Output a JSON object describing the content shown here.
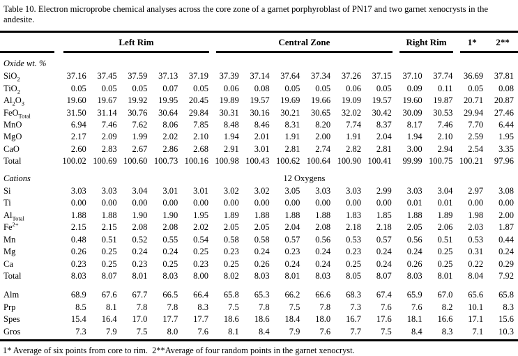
{
  "title": "Table 10. Electron microprobe chemical analyses across the core zone of a garnet porphyroblast of PN17 and two garnet xenocrysts in the andesite.",
  "footnote": "1* Average of six points from core to rim.  2**Average of four random points in the garnet xenocryst.",
  "header": {
    "groups": [
      {
        "label": "",
        "name": "row-labels",
        "span": 1
      },
      {
        "label": "Left Rim",
        "name": "left-rim",
        "span": 5
      },
      {
        "label": "Central Zone",
        "name": "central-zone",
        "span": 6
      },
      {
        "label": "Right Rim",
        "name": "right-rim",
        "span": 2
      },
      {
        "label": "1*",
        "name": "avg-1-star",
        "span": 1
      },
      {
        "label": "2**",
        "name": "avg-2-star",
        "span": 1
      }
    ],
    "rules": [
      1,
      5,
      6,
      2,
      2
    ]
  },
  "sections": [
    {
      "title": "Oxide wt. %",
      "note": "",
      "rows": [
        {
          "label": [
            {
              "t": "SiO"
            },
            {
              "t": "2",
              "s": "sub"
            }
          ],
          "values": [
            "37.16",
            "37.45",
            "37.59",
            "37.13",
            "37.19",
            "37.39",
            "37.14",
            "37.64",
            "37.34",
            "37.26",
            "37.15",
            "37.10",
            "37.74",
            "36.69",
            "37.81"
          ]
        },
        {
          "label": [
            {
              "t": "TiO"
            },
            {
              "t": "2",
              "s": "sub"
            }
          ],
          "values": [
            "0.05",
            "0.05",
            "0.05",
            "0.07",
            "0.05",
            "0.06",
            "0.08",
            "0.05",
            "0.05",
            "0.06",
            "0.05",
            "0.09",
            "0.11",
            "0.05",
            "0.08"
          ]
        },
        {
          "label": [
            {
              "t": "Al"
            },
            {
              "t": "2",
              "s": "sub"
            },
            {
              "t": "O"
            },
            {
              "t": "3",
              "s": "sub"
            }
          ],
          "values": [
            "19.60",
            "19.67",
            "19.92",
            "19.95",
            "20.45",
            "19.89",
            "19.57",
            "19.69",
            "19.66",
            "19.09",
            "19.57",
            "19.60",
            "19.87",
            "20.71",
            "20.87"
          ]
        },
        {
          "label": [
            {
              "t": "FeO"
            },
            {
              "t": "Total",
              "s": "sub"
            }
          ],
          "values": [
            "31.50",
            "31.14",
            "30.76",
            "30.64",
            "29.84",
            "30.31",
            "30.16",
            "30.21",
            "30.65",
            "32.02",
            "30.42",
            "30.09",
            "30.53",
            "29.94",
            "27.46"
          ]
        },
        {
          "label": [
            {
              "t": "MnO"
            }
          ],
          "values": [
            "6.94",
            "7.46",
            "7.62",
            "8.06",
            "7.85",
            "8.48",
            "8.46",
            "8.31",
            "8.20",
            "7.74",
            "8.37",
            "8.17",
            "7.46",
            "7.70",
            "6.44"
          ]
        },
        {
          "label": [
            {
              "t": "MgO"
            }
          ],
          "values": [
            "2.17",
            "2.09",
            "1.99",
            "2.02",
            "2.10",
            "1.94",
            "2.01",
            "1.91",
            "2.00",
            "1.91",
            "2.04",
            "1.94",
            "2.10",
            "2.59",
            "1.95"
          ]
        },
        {
          "label": [
            {
              "t": "CaO"
            }
          ],
          "values": [
            "2.60",
            "2.83",
            "2.67",
            "2.86",
            "2.68",
            "2.91",
            "3.01",
            "2.81",
            "2.74",
            "2.82",
            "2.81",
            "3.00",
            "2.94",
            "2.54",
            "3.35"
          ]
        },
        {
          "label": [
            {
              "t": "Total"
            }
          ],
          "values": [
            "100.02",
            "100.69",
            "100.60",
            "100.73",
            "100.16",
            "100.98",
            "100.43",
            "100.62",
            "100.64",
            "100.90",
            "100.41",
            "99.99",
            "100.75",
            "100.21",
            "97.96"
          ]
        }
      ]
    },
    {
      "title": "Cations",
      "note": "12 Oxygens",
      "rows": [
        {
          "label": [
            {
              "t": "Si"
            }
          ],
          "values": [
            "3.03",
            "3.03",
            "3.04",
            "3.01",
            "3.01",
            "3.02",
            "3.02",
            "3.05",
            "3.03",
            "3.03",
            "2.99",
            "3.03",
            "3.04",
            "2.97",
            "3.08"
          ]
        },
        {
          "label": [
            {
              "t": "Ti"
            }
          ],
          "values": [
            "0.00",
            "0.00",
            "0.00",
            "0.00",
            "0.00",
            "0.00",
            "0.00",
            "0.00",
            "0.00",
            "0.00",
            "0.00",
            "0.01",
            "0.01",
            "0.00",
            "0.00"
          ]
        },
        {
          "label": [
            {
              "t": "Al"
            },
            {
              "t": "Total",
              "s": "sub"
            }
          ],
          "values": [
            "1.88",
            "1.88",
            "1.90",
            "1.90",
            "1.95",
            "1.89",
            "1.88",
            "1.88",
            "1.88",
            "1.83",
            "1.85",
            "1.88",
            "1.89",
            "1.98",
            "2.00"
          ]
        },
        {
          "label": [
            {
              "t": "Fe"
            },
            {
              "t": "2+",
              "s": "sup"
            }
          ],
          "values": [
            "2.15",
            "2.15",
            "2.08",
            "2.08",
            "2.02",
            "2.05",
            "2.05",
            "2.04",
            "2.08",
            "2.18",
            "2.18",
            "2.05",
            "2.06",
            "2.03",
            "1.87"
          ]
        },
        {
          "label": [
            {
              "t": "Mn"
            }
          ],
          "values": [
            "0.48",
            "0.51",
            "0.52",
            "0.55",
            "0.54",
            "0.58",
            "0.58",
            "0.57",
            "0.56",
            "0.53",
            "0.57",
            "0.56",
            "0.51",
            "0.53",
            "0.44"
          ]
        },
        {
          "label": [
            {
              "t": "Mg"
            }
          ],
          "values": [
            "0.26",
            "0.25",
            "0.24",
            "0.24",
            "0.25",
            "0.23",
            "0.24",
            "0.23",
            "0.24",
            "0.23",
            "0.24",
            "0.24",
            "0.25",
            "0.31",
            "0.24"
          ]
        },
        {
          "label": [
            {
              "t": "Ca"
            }
          ],
          "values": [
            "0.23",
            "0.25",
            "0.23",
            "0.25",
            "0.23",
            "0.25",
            "0.26",
            "0.24",
            "0.24",
            "0.25",
            "0.24",
            "0.26",
            "0.25",
            "0.22",
            "0.29"
          ]
        },
        {
          "label": [
            {
              "t": "Total"
            }
          ],
          "values": [
            "8.03",
            "8.07",
            "8.01",
            "8.03",
            "8.00",
            "8.02",
            "8.03",
            "8.01",
            "8.03",
            "8.05",
            "8.07",
            "8.03",
            "8.01",
            "8.04",
            "7.92"
          ]
        }
      ]
    },
    {
      "title": "",
      "note": "",
      "rows": [
        {
          "label": [
            {
              "t": "Alm"
            }
          ],
          "values": [
            "68.9",
            "67.6",
            "67.7",
            "66.5",
            "66.4",
            "65.8",
            "65.3",
            "66.2",
            "66.6",
            "68.3",
            "67.4",
            "65.9",
            "67.0",
            "65.6",
            "65.8"
          ]
        },
        {
          "label": [
            {
              "t": "Prp"
            }
          ],
          "values": [
            "8.5",
            "8.1",
            "7.8",
            "7.8",
            "8.3",
            "7.5",
            "7.8",
            "7.5",
            "7.8",
            "7.3",
            "7.6",
            "7.6",
            "8.2",
            "10.1",
            "8.3"
          ]
        },
        {
          "label": [
            {
              "t": "Spes"
            }
          ],
          "values": [
            "15.4",
            "16.4",
            "17.0",
            "17.7",
            "17.7",
            "18.6",
            "18.6",
            "18.4",
            "18.0",
            "16.7",
            "17.6",
            "18.1",
            "16.6",
            "17.1",
            "15.6"
          ]
        },
        {
          "label": [
            {
              "t": "Gros"
            }
          ],
          "values": [
            "7.3",
            "7.9",
            "7.5",
            "8.0",
            "7.6",
            "8.1",
            "8.4",
            "7.9",
            "7.6",
            "7.7",
            "7.5",
            "8.4",
            "8.3",
            "7.1",
            "10.3"
          ]
        }
      ]
    }
  ]
}
